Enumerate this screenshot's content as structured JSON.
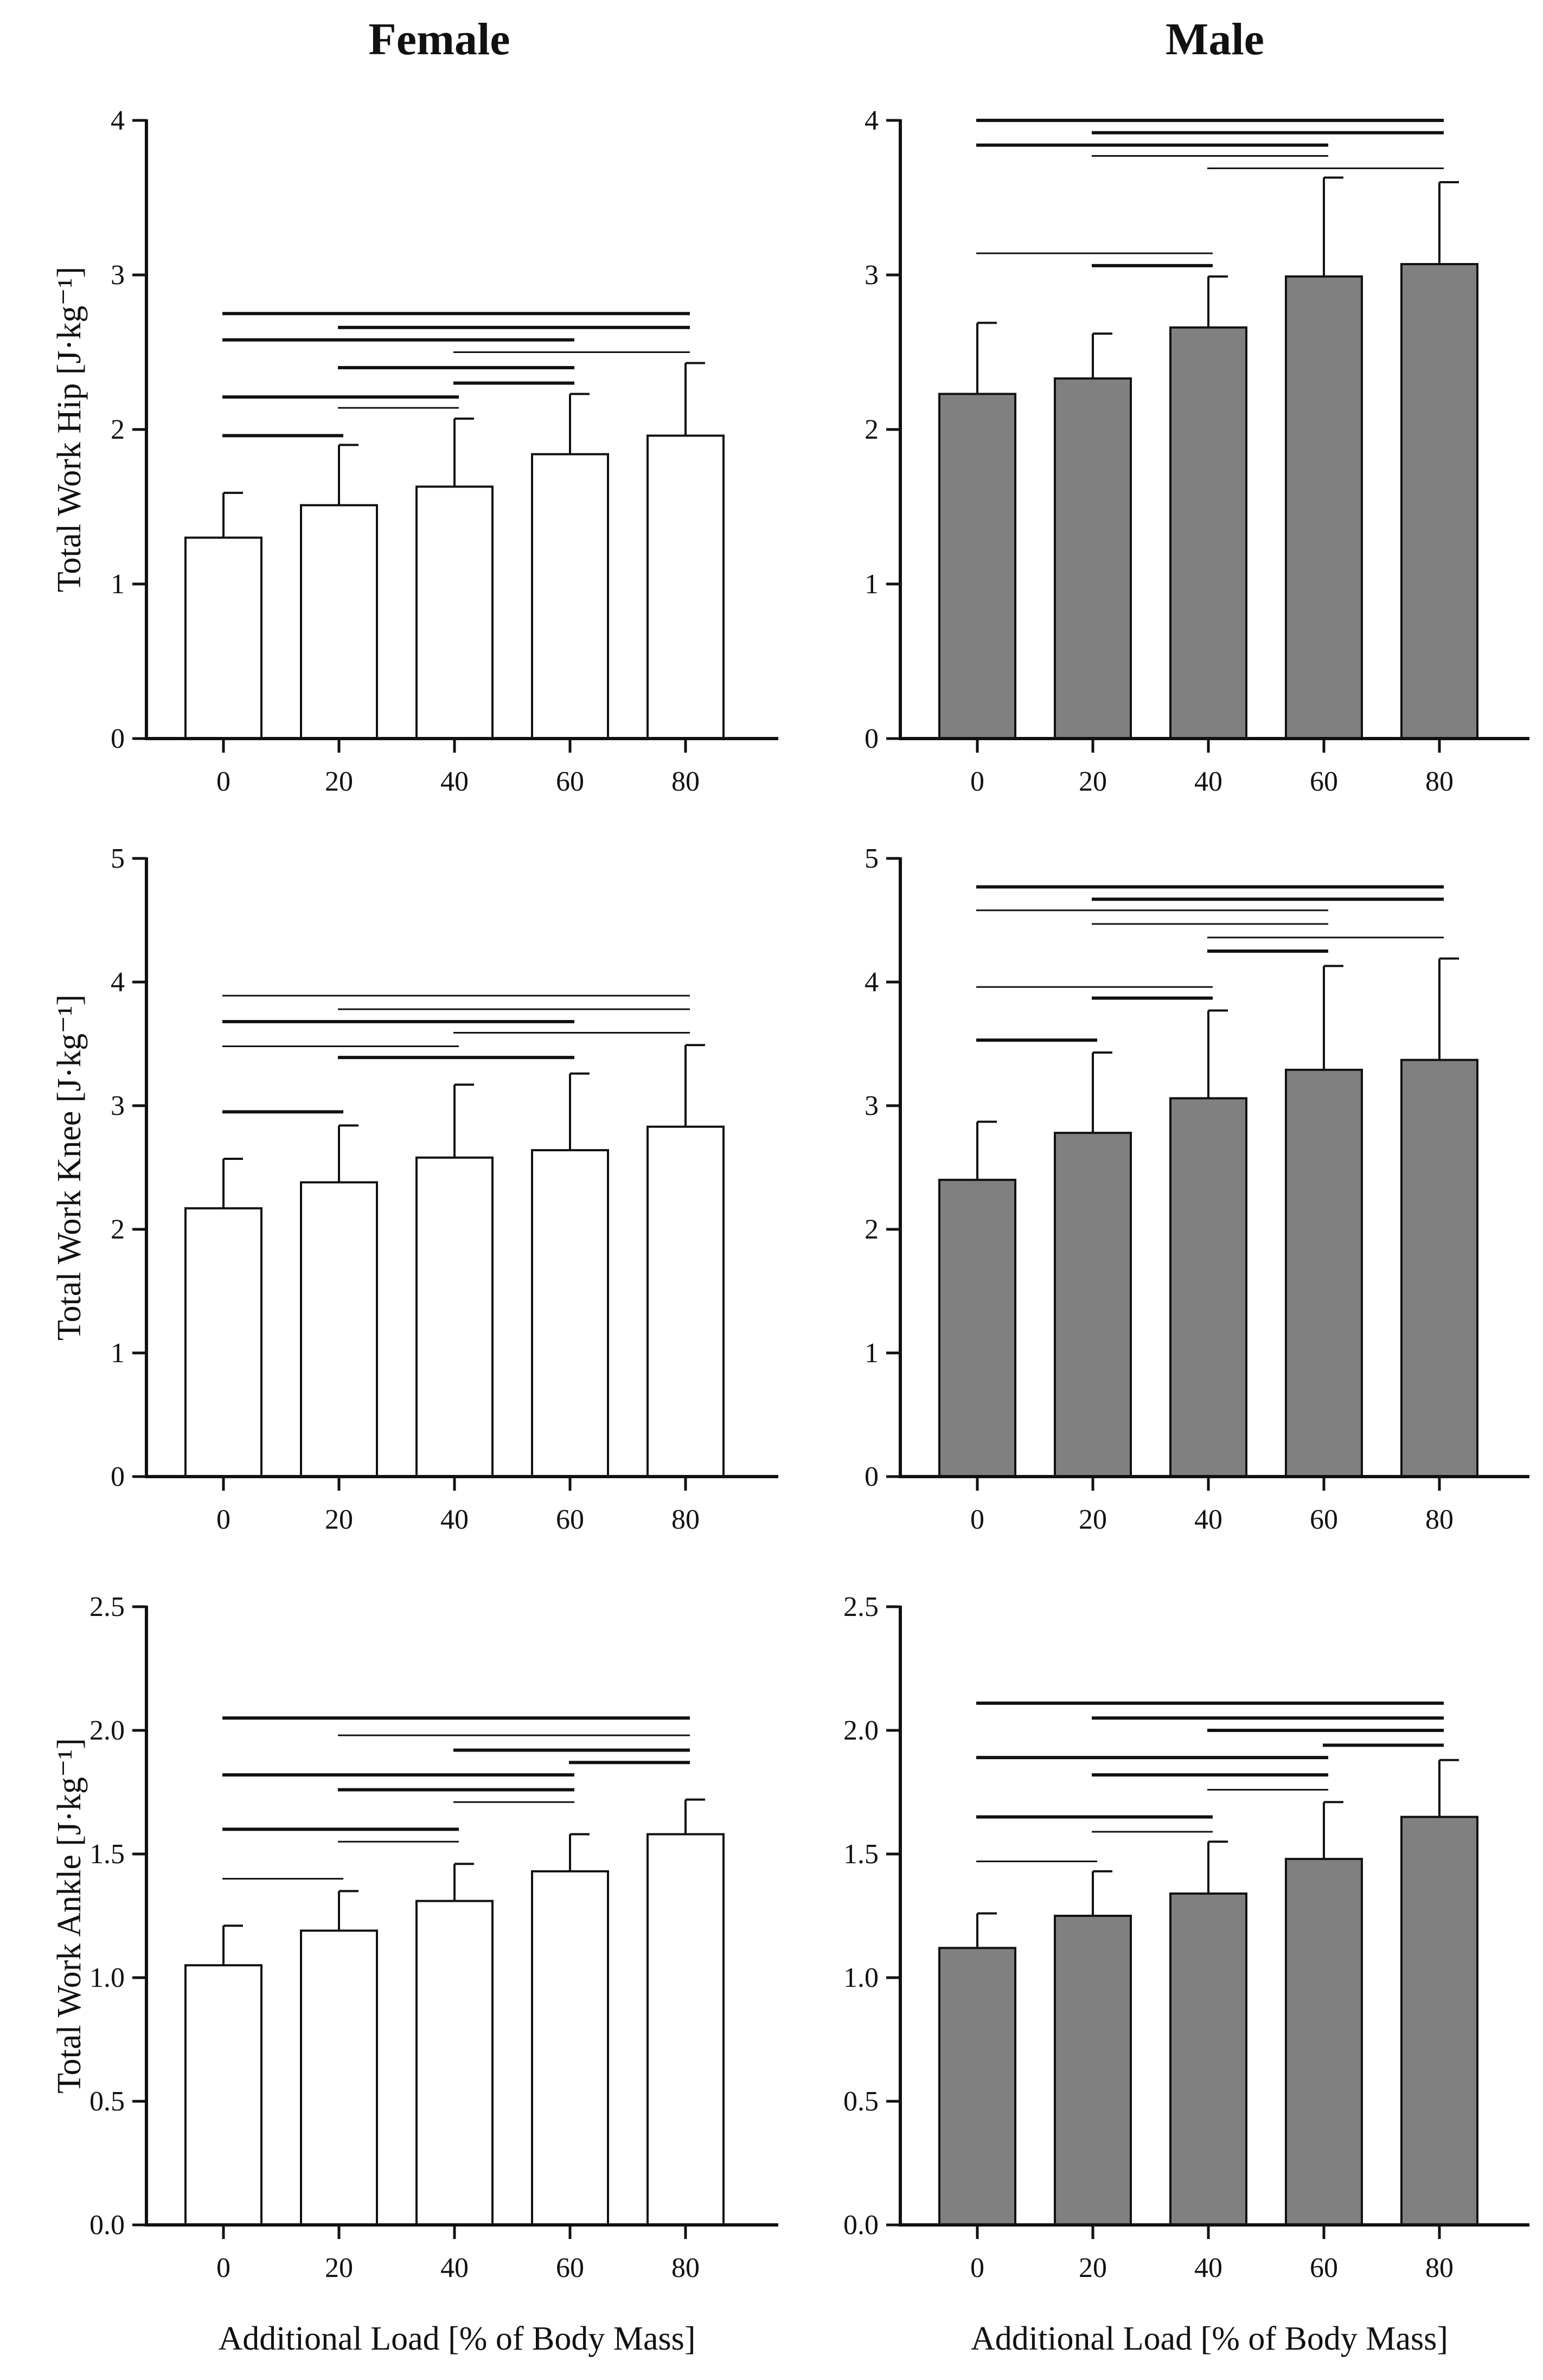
{
  "column_titles": [
    "Female",
    "Male"
  ],
  "x_label": "Additional Load [% of Body Mass]",
  "colors": {
    "female_bar": "#ffffff",
    "male_bar": "#808080",
    "ink": "#111111"
  },
  "chart_data": [
    {
      "id": "female-hip",
      "type": "bar",
      "group": "Female",
      "categories": [
        "0",
        "20",
        "40",
        "60",
        "80"
      ],
      "values": [
        1.3,
        1.51,
        1.63,
        1.84,
        1.96
      ],
      "errors": [
        0.29,
        0.39,
        0.44,
        0.39,
        0.47
      ],
      "ylabel": "Total Work Hip [J·kg⁻¹]",
      "ylim": [
        0,
        4
      ],
      "yticks": [
        0,
        1,
        2,
        3,
        4
      ],
      "tick_labels": [
        "0",
        "1",
        "2",
        "3",
        "4"
      ],
      "xlabel": "",
      "significance": [
        {
          "from": 0,
          "to": 4,
          "y": 2.75,
          "weight": "bold"
        },
        {
          "from": 1,
          "to": 4,
          "y": 2.66,
          "weight": "bold"
        },
        {
          "from": 0,
          "to": 3,
          "y": 2.58,
          "weight": "bold"
        },
        {
          "from": 2,
          "to": 4,
          "y": 2.5,
          "weight": "thin"
        },
        {
          "from": 1,
          "to": 3,
          "y": 2.4,
          "weight": "bold"
        },
        {
          "from": 2,
          "to": 3,
          "y": 2.3,
          "weight": "bold"
        },
        {
          "from": 0,
          "to": 2,
          "y": 2.21,
          "weight": "bold"
        },
        {
          "from": 1,
          "to": 2,
          "y": 2.14,
          "weight": "thin"
        },
        {
          "from": 0,
          "to": 1,
          "y": 1.96,
          "weight": "bold"
        }
      ]
    },
    {
      "id": "male-hip",
      "type": "bar",
      "group": "Male",
      "categories": [
        "0",
        "20",
        "40",
        "60",
        "80"
      ],
      "values": [
        2.23,
        2.33,
        2.66,
        2.99,
        3.07
      ],
      "errors": [
        0.46,
        0.29,
        0.33,
        0.64,
        0.53
      ],
      "ylabel": "",
      "ylim": [
        0,
        4
      ],
      "yticks": [
        0,
        1,
        2,
        3,
        4
      ],
      "tick_labels": [
        "0",
        "1",
        "2",
        "3",
        "4"
      ],
      "xlabel": "",
      "significance": [
        {
          "from": 0,
          "to": 4,
          "y": 4.0,
          "weight": "bold"
        },
        {
          "from": 1,
          "to": 4,
          "y": 3.92,
          "weight": "bold"
        },
        {
          "from": 0,
          "to": 3,
          "y": 3.84,
          "weight": "bold"
        },
        {
          "from": 1,
          "to": 3,
          "y": 3.77,
          "weight": "thin"
        },
        {
          "from": 2,
          "to": 4,
          "y": 3.69,
          "weight": "thin"
        },
        {
          "from": 0,
          "to": 2,
          "y": 3.14,
          "weight": "thin"
        },
        {
          "from": 1,
          "to": 2,
          "y": 3.06,
          "weight": "bold"
        }
      ]
    },
    {
      "id": "female-knee",
      "type": "bar",
      "group": "Female",
      "categories": [
        "0",
        "20",
        "40",
        "60",
        "80"
      ],
      "values": [
        2.17,
        2.38,
        2.58,
        2.64,
        2.83
      ],
      "errors": [
        0.4,
        0.46,
        0.59,
        0.62,
        0.66
      ],
      "ylabel": "Total Work Knee [J·kg⁻¹]",
      "ylim": [
        0,
        5
      ],
      "yticks": [
        0,
        1,
        2,
        3,
        4,
        5
      ],
      "tick_labels": [
        "0",
        "1",
        "2",
        "3",
        "4",
        "5"
      ],
      "xlabel": "",
      "significance": [
        {
          "from": 0,
          "to": 4,
          "y": 3.89,
          "weight": "thin"
        },
        {
          "from": 1,
          "to": 4,
          "y": 3.78,
          "weight": "thin"
        },
        {
          "from": 0,
          "to": 3,
          "y": 3.68,
          "weight": "bold"
        },
        {
          "from": 2,
          "to": 4,
          "y": 3.59,
          "weight": "thin"
        },
        {
          "from": 0,
          "to": 2,
          "y": 3.48,
          "weight": "thin"
        },
        {
          "from": 1,
          "to": 3,
          "y": 3.39,
          "weight": "bold"
        },
        {
          "from": 0,
          "to": 1,
          "y": 2.95,
          "weight": "bold"
        }
      ]
    },
    {
      "id": "male-knee",
      "type": "bar",
      "group": "Male",
      "categories": [
        "0",
        "20",
        "40",
        "60",
        "80"
      ],
      "values": [
        2.4,
        2.78,
        3.06,
        3.29,
        3.37
      ],
      "errors": [
        0.47,
        0.65,
        0.71,
        0.84,
        0.82
      ],
      "ylabel": "",
      "ylim": [
        0,
        5
      ],
      "yticks": [
        0,
        1,
        2,
        3,
        4,
        5
      ],
      "tick_labels": [
        "0",
        "1",
        "2",
        "3",
        "4",
        "5"
      ],
      "xlabel": "",
      "significance": [
        {
          "from": 0,
          "to": 4,
          "y": 4.77,
          "weight": "bold"
        },
        {
          "from": 1,
          "to": 4,
          "y": 4.67,
          "weight": "bold"
        },
        {
          "from": 0,
          "to": 3,
          "y": 4.58,
          "weight": "thin"
        },
        {
          "from": 1,
          "to": 3,
          "y": 4.47,
          "weight": "thin"
        },
        {
          "from": 2,
          "to": 4,
          "y": 4.36,
          "weight": "thin"
        },
        {
          "from": 2,
          "to": 3,
          "y": 4.25,
          "weight": "bold"
        },
        {
          "from": 0,
          "to": 2,
          "y": 3.96,
          "weight": "thin"
        },
        {
          "from": 1,
          "to": 2,
          "y": 3.87,
          "weight": "bold"
        },
        {
          "from": 0,
          "to": 1,
          "y": 3.53,
          "weight": "bold"
        }
      ]
    },
    {
      "id": "female-ankle",
      "type": "bar",
      "group": "Female",
      "categories": [
        "0",
        "20",
        "40",
        "60",
        "80"
      ],
      "values": [
        1.05,
        1.19,
        1.31,
        1.43,
        1.58
      ],
      "errors": [
        0.16,
        0.16,
        0.15,
        0.15,
        0.14
      ],
      "ylabel": "Total Work Ankle [J·kg⁻¹]",
      "ylim": [
        0,
        2.5
      ],
      "yticks": [
        0,
        0.5,
        1,
        1.5,
        2,
        2.5
      ],
      "tick_labels": [
        "0.0",
        "0.5",
        "1.0",
        "1.5",
        "2.0",
        "2.5"
      ],
      "xlabel": "Additional Load [% of Body Mass]",
      "significance": [
        {
          "from": 0,
          "to": 4,
          "y": 2.05,
          "weight": "bold"
        },
        {
          "from": 1,
          "to": 4,
          "y": 1.98,
          "weight": "thin"
        },
        {
          "from": 2,
          "to": 4,
          "y": 1.92,
          "weight": "bold"
        },
        {
          "from": 3,
          "to": 4,
          "y": 1.87,
          "weight": "bold"
        },
        {
          "from": 0,
          "to": 3,
          "y": 1.82,
          "weight": "bold"
        },
        {
          "from": 1,
          "to": 3,
          "y": 1.76,
          "weight": "bold"
        },
        {
          "from": 2,
          "to": 3,
          "y": 1.71,
          "weight": "thin"
        },
        {
          "from": 0,
          "to": 2,
          "y": 1.6,
          "weight": "bold"
        },
        {
          "from": 1,
          "to": 2,
          "y": 1.55,
          "weight": "thin"
        },
        {
          "from": 0,
          "to": 1,
          "y": 1.4,
          "weight": "thin"
        }
      ]
    },
    {
      "id": "male-ankle",
      "type": "bar",
      "group": "Male",
      "categories": [
        "0",
        "20",
        "40",
        "60",
        "80"
      ],
      "values": [
        1.12,
        1.25,
        1.34,
        1.48,
        1.65
      ],
      "errors": [
        0.14,
        0.18,
        0.21,
        0.23,
        0.23
      ],
      "ylabel": "",
      "ylim": [
        0,
        2.5
      ],
      "yticks": [
        0,
        0.5,
        1,
        1.5,
        2,
        2.5
      ],
      "tick_labels": [
        "0.0",
        "0.5",
        "1.0",
        "1.5",
        "2.0",
        "2.5"
      ],
      "xlabel": "Additional Load [% of Body Mass]",
      "significance": [
        {
          "from": 0,
          "to": 4,
          "y": 2.11,
          "weight": "bold"
        },
        {
          "from": 1,
          "to": 4,
          "y": 2.05,
          "weight": "bold"
        },
        {
          "from": 2,
          "to": 4,
          "y": 2.0,
          "weight": "bold"
        },
        {
          "from": 3,
          "to": 4,
          "y": 1.94,
          "weight": "bold"
        },
        {
          "from": 0,
          "to": 3,
          "y": 1.89,
          "weight": "bold"
        },
        {
          "from": 1,
          "to": 3,
          "y": 1.82,
          "weight": "bold"
        },
        {
          "from": 2,
          "to": 3,
          "y": 1.76,
          "weight": "thin"
        },
        {
          "from": 0,
          "to": 2,
          "y": 1.65,
          "weight": "bold"
        },
        {
          "from": 1,
          "to": 2,
          "y": 1.59,
          "weight": "thin"
        },
        {
          "from": 0,
          "to": 1,
          "y": 1.47,
          "weight": "thin"
        }
      ]
    }
  ]
}
